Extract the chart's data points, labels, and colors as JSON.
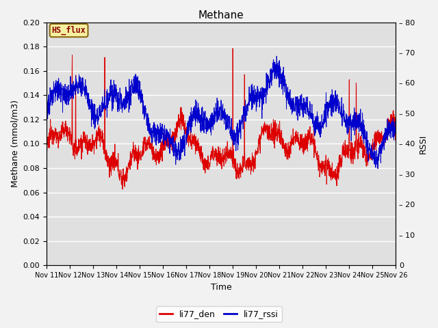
{
  "title": "Methane",
  "xlabel": "Time",
  "ylabel_left": "Methane (mmol/m3)",
  "ylabel_right": "RSSI",
  "ylim_left": [
    0.0,
    0.2
  ],
  "ylim_right": [
    0,
    80
  ],
  "xlim": [
    0,
    15
  ],
  "x_tick_labels": [
    "Nov 11",
    "Nov 12",
    "Nov 13",
    "Nov 14",
    "Nov 15",
    "Nov 16",
    "Nov 17",
    "Nov 18",
    "Nov 19",
    "Nov 20",
    "Nov 21",
    "Nov 22",
    "Nov 23",
    "Nov 24",
    "Nov 25",
    "Nov 26"
  ],
  "legend_label": "HS_flux",
  "legend_box_color": "#f5f0a0",
  "legend_box_edge": "#8B6914",
  "line1_label": "li77_den",
  "line1_color": "#dd0000",
  "line2_label": "li77_rssi",
  "line2_color": "#0000cc",
  "bg_color": "#e0e0e0",
  "fig_color": "#f2f2f2",
  "title_fontsize": 11,
  "axis_fontsize": 9,
  "tick_fontsize": 8
}
